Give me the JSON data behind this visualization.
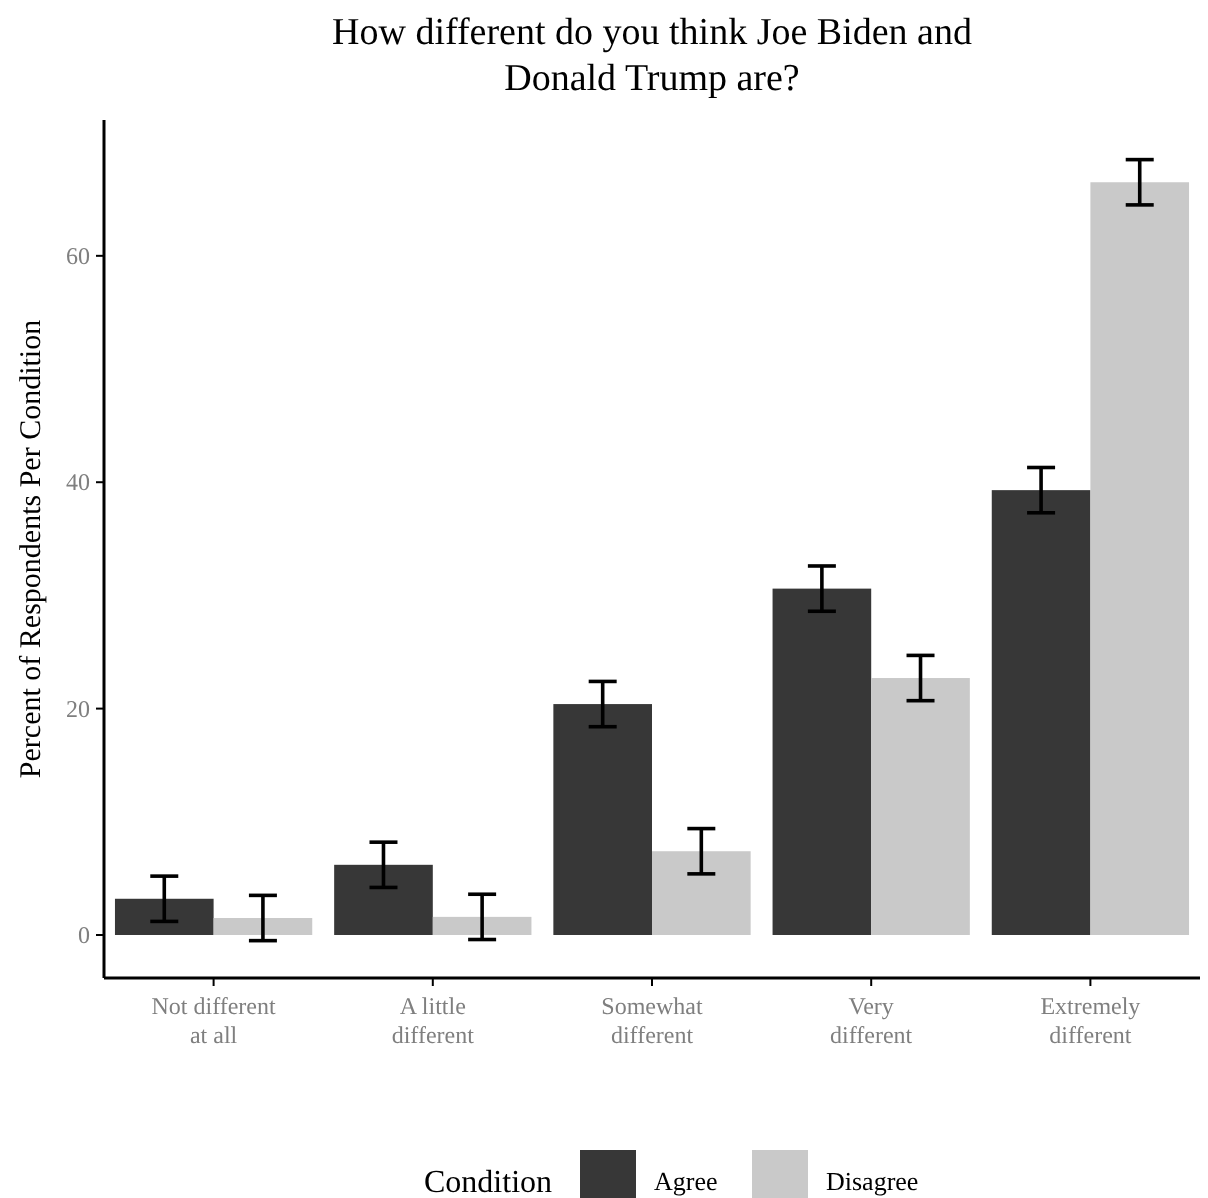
{
  "chart_data": {
    "type": "bar",
    "title": "How different do you think Joe Biden and\nDonald Trump are?",
    "ylabel": "Percent of Respondents Per Condition",
    "categories": [
      "Not different\nat all",
      "A little\ndifferent",
      "Somewhat\ndifferent",
      "Very\ndifferent",
      "Extremely\ndifferent"
    ],
    "series": [
      {
        "name": "Agree",
        "color": "#373737",
        "values": [
          3.2,
          6.2,
          20.4,
          30.6,
          39.3
        ],
        "errors": [
          2.0,
          2.0,
          2.0,
          2.0,
          2.0
        ]
      },
      {
        "name": "Disagree",
        "color": "#c9c9c9",
        "values": [
          1.5,
          1.6,
          7.4,
          22.7,
          66.5
        ],
        "errors": [
          2.0,
          2.0,
          2.0,
          2.0,
          2.0
        ]
      }
    ],
    "ylim": [
      -3.8,
      72
    ],
    "yticks": [
      0,
      20,
      40,
      60
    ],
    "grid": false,
    "legend": "bottom",
    "legend_title": "Condition"
  }
}
